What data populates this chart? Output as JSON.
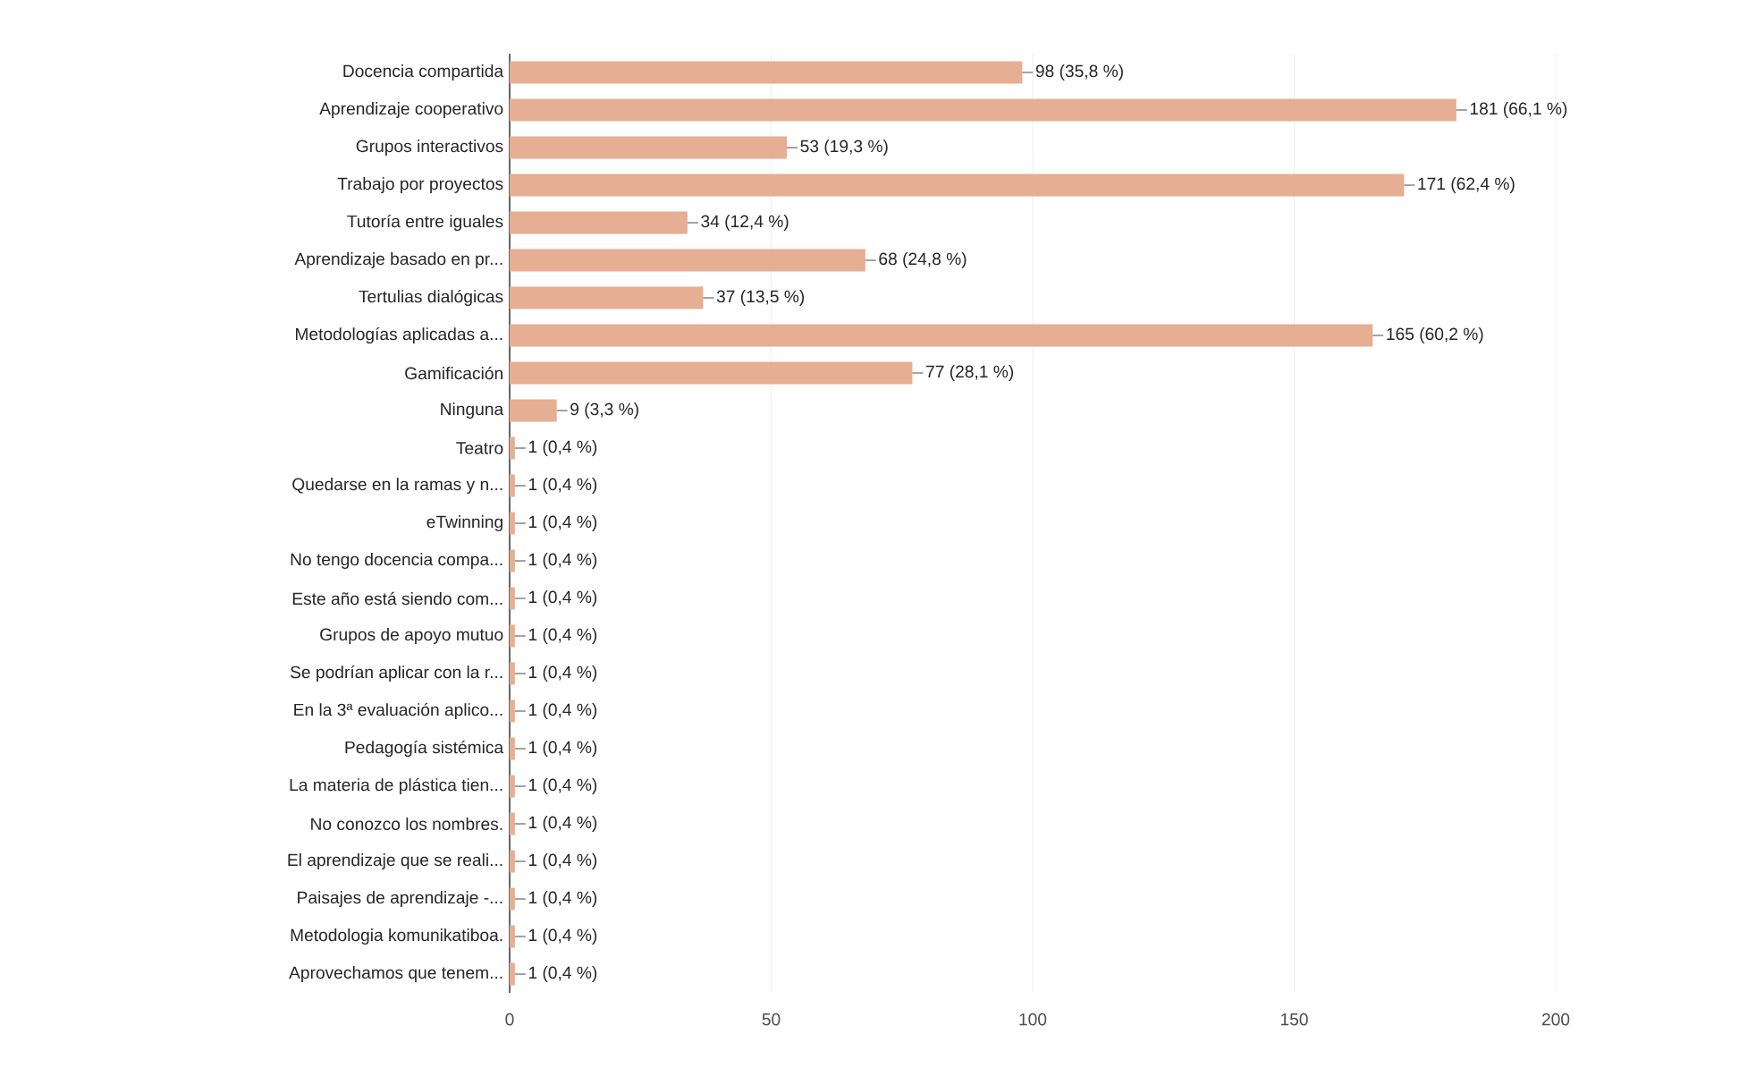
{
  "chart_data": {
    "type": "bar",
    "orientation": "horizontal",
    "categories": [
      "Docencia compartida",
      "Aprendizaje cooperativo",
      "Grupos interactivos",
      "Trabajo por proyectos",
      "Tutoría entre iguales",
      "Aprendizaje basado en pr...",
      "Tertulias dialógicas",
      "Metodologías aplicadas a...",
      "Gamificación",
      "Ninguna",
      "Teatro",
      "Quedarse en la ramas y n...",
      "eTwinning",
      "No tengo docencia compa...",
      "Este año está siendo com...",
      "Grupos de apoyo mutuo",
      "Se podrían aplicar con la r...",
      "En la 3ª evaluación aplico...",
      "Pedagogía sistémica",
      "La materia de plástica tien...",
      "No conozco los nombres.",
      "El aprendizaje que se reali...",
      "Paisajes de aprendizaje -...",
      "Metodologia komunikatiboa.",
      "Aprovechamos que tenem..."
    ],
    "values": [
      98,
      181,
      53,
      171,
      34,
      68,
      37,
      165,
      77,
      9,
      1,
      1,
      1,
      1,
      1,
      1,
      1,
      1,
      1,
      1,
      1,
      1,
      1,
      1,
      1
    ],
    "value_labels": [
      "98 (35,8 %)",
      "181 (66,1 %)",
      "53 (19,3 %)",
      "171 (62,4 %)",
      "34 (12,4 %)",
      "68 (24,8 %)",
      "37 (13,5 %)",
      "165 (60,2 %)",
      "77 (28,1 %)",
      "9 (3,3 %)",
      "1 (0,4 %)",
      "1 (0,4 %)",
      "1 (0,4 %)",
      "1 (0,4 %)",
      "1 (0,4 %)",
      "1 (0,4 %)",
      "1 (0,4 %)",
      "1 (0,4 %)",
      "1 (0,4 %)",
      "1 (0,4 %)",
      "1 (0,4 %)",
      "1 (0,4 %)",
      "1 (0,4 %)",
      "1 (0,4 %)",
      "1 (0,4 %)"
    ],
    "color": "#e6ae92",
    "xlim": [
      0,
      200
    ],
    "xticks": [
      0,
      50,
      100,
      150,
      200
    ],
    "grid": "x"
  }
}
